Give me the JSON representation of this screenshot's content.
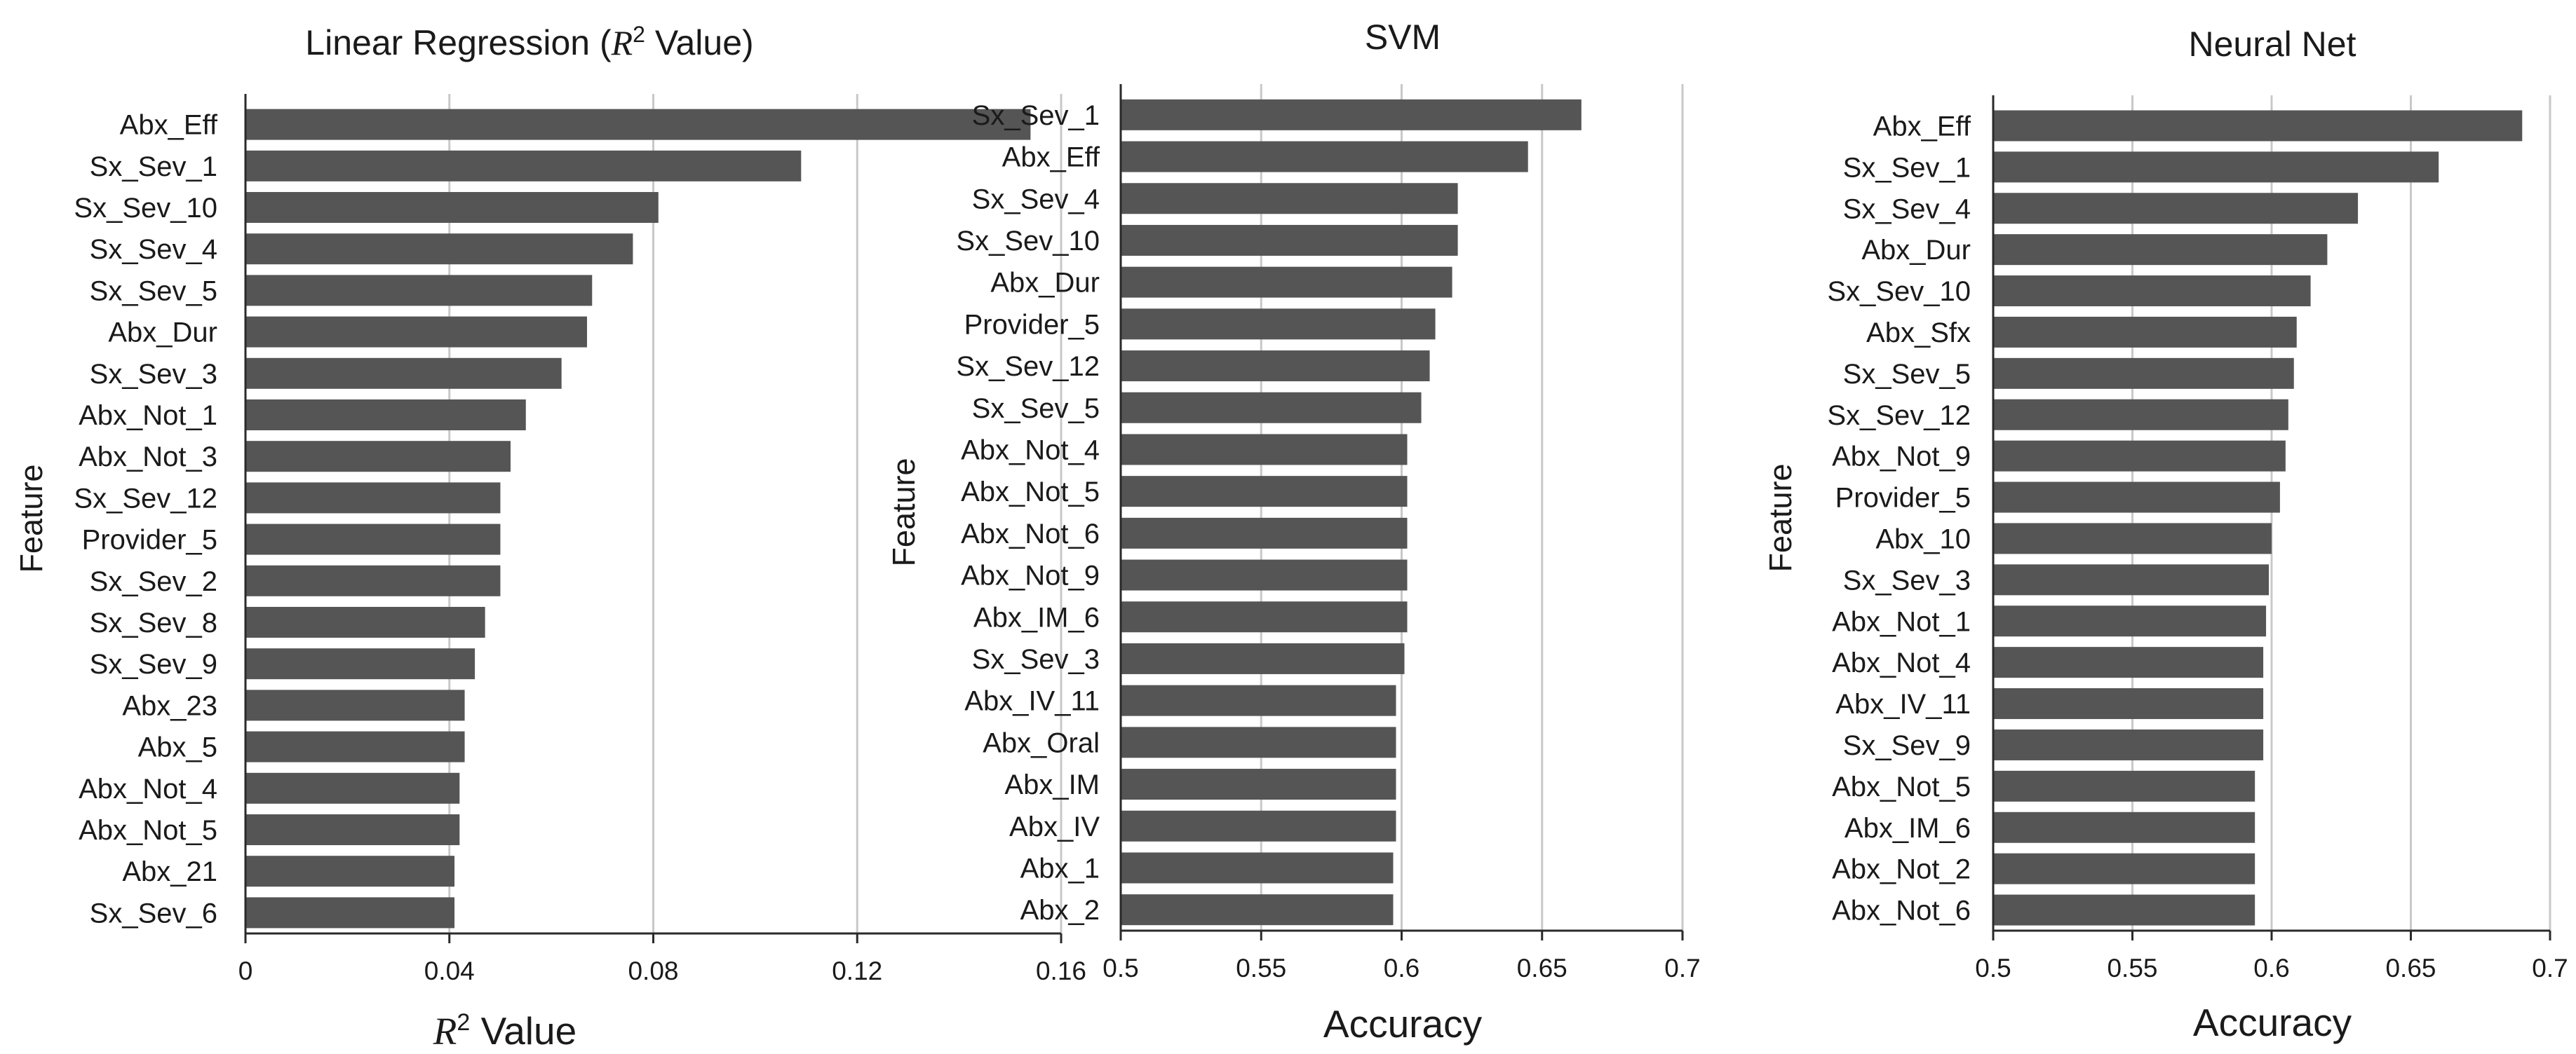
{
  "chart_data": [
    {
      "type": "bar",
      "orientation": "horizontal",
      "title": "Linear Regression (",
      "title_symbol": "R",
      "title_sup": "2",
      "title_suffix": " Value)",
      "xlabel_symbol": "R",
      "xlabel_sup": "2",
      "xlabel_suffix": " Value",
      "ylabel": "Feature",
      "xlim": [
        0,
        0.16
      ],
      "xticks": [
        0,
        0.04,
        0.08,
        0.12,
        0.16
      ],
      "xtick_labels": [
        "0",
        "0.04",
        "0.08",
        "0.12",
        "0.16"
      ],
      "grid": true,
      "categories": [
        "Abx_Eff",
        "Sx_Sev_1",
        "Sx_Sev_10",
        "Sx_Sev_4",
        "Sx_Sev_5",
        "Abx_Dur",
        "Sx_Sev_3",
        "Abx_Not_1",
        "Abx_Not_3",
        "Sx_Sev_12",
        "Provider_5",
        "Sx_Sev_2",
        "Sx_Sev_8",
        "Sx_Sev_9",
        "Abx_23",
        "Abx_5",
        "Abx_Not_4",
        "Abx_Not_5",
        "Abx_21",
        "Sx_Sev_6"
      ],
      "values": [
        0.154,
        0.109,
        0.081,
        0.076,
        0.068,
        0.067,
        0.062,
        0.055,
        0.052,
        0.05,
        0.05,
        0.05,
        0.047,
        0.045,
        0.043,
        0.043,
        0.042,
        0.042,
        0.041,
        0.041
      ]
    },
    {
      "type": "bar",
      "orientation": "horizontal",
      "title": "SVM",
      "xlabel": "Accuracy",
      "ylabel": "Feature",
      "xlim": [
        0.5,
        0.7
      ],
      "xticks": [
        0.5,
        0.55,
        0.6,
        0.65,
        0.7
      ],
      "xtick_labels": [
        "0.5",
        "0.55",
        "0.6",
        "0.65",
        "0.7"
      ],
      "grid": true,
      "categories": [
        "Sx_Sev_1",
        "Abx_Eff",
        "Sx_Sev_4",
        "Sx_Sev_10",
        "Abx_Dur",
        "Provider_5",
        "Sx_Sev_12",
        "Sx_Sev_5",
        "Abx_Not_4",
        "Abx_Not_5",
        "Abx_Not_6",
        "Abx_Not_9",
        "Abx_IM_6",
        "Sx_Sev_3",
        "Abx_IV_11",
        "Abx_Oral",
        "Abx_IM",
        "Abx_IV",
        "Abx_1",
        "Abx_2"
      ],
      "values": [
        0.664,
        0.645,
        0.62,
        0.62,
        0.618,
        0.612,
        0.61,
        0.607,
        0.602,
        0.602,
        0.602,
        0.602,
        0.602,
        0.601,
        0.598,
        0.598,
        0.598,
        0.598,
        0.597,
        0.597
      ]
    },
    {
      "type": "bar",
      "orientation": "horizontal",
      "title": "Neural Net",
      "xlabel": "Accuracy",
      "ylabel": "Feature",
      "xlim": [
        0.5,
        0.7
      ],
      "xticks": [
        0.5,
        0.55,
        0.6,
        0.65,
        0.7
      ],
      "xtick_labels": [
        "0.5",
        "0.55",
        "0.6",
        "0.65",
        "0.7"
      ],
      "grid": true,
      "categories": [
        "Abx_Eff",
        "Sx_Sev_1",
        "Sx_Sev_4",
        "Abx_Dur",
        "Sx_Sev_10",
        "Abx_Sfx",
        "Sx_Sev_5",
        "Sx_Sev_12",
        "Abx_Not_9",
        "Provider_5",
        "Abx_10",
        "Sx_Sev_3",
        "Abx_Not_1",
        "Abx_Not_4",
        "Abx_IV_11",
        "Sx_Sev_9",
        "Abx_Not_5",
        "Abx_IM_6",
        "Abx_Not_2",
        "Abx_Not_6"
      ],
      "values": [
        0.69,
        0.66,
        0.631,
        0.62,
        0.614,
        0.609,
        0.608,
        0.606,
        0.605,
        0.603,
        0.6,
        0.599,
        0.598,
        0.597,
        0.597,
        0.597,
        0.594,
        0.594,
        0.594,
        0.594
      ]
    }
  ],
  "colors": {
    "bar": "#555555",
    "grid": "#c8c8c8",
    "axis": "#2a2a2a",
    "text": "#1a1a1a"
  }
}
